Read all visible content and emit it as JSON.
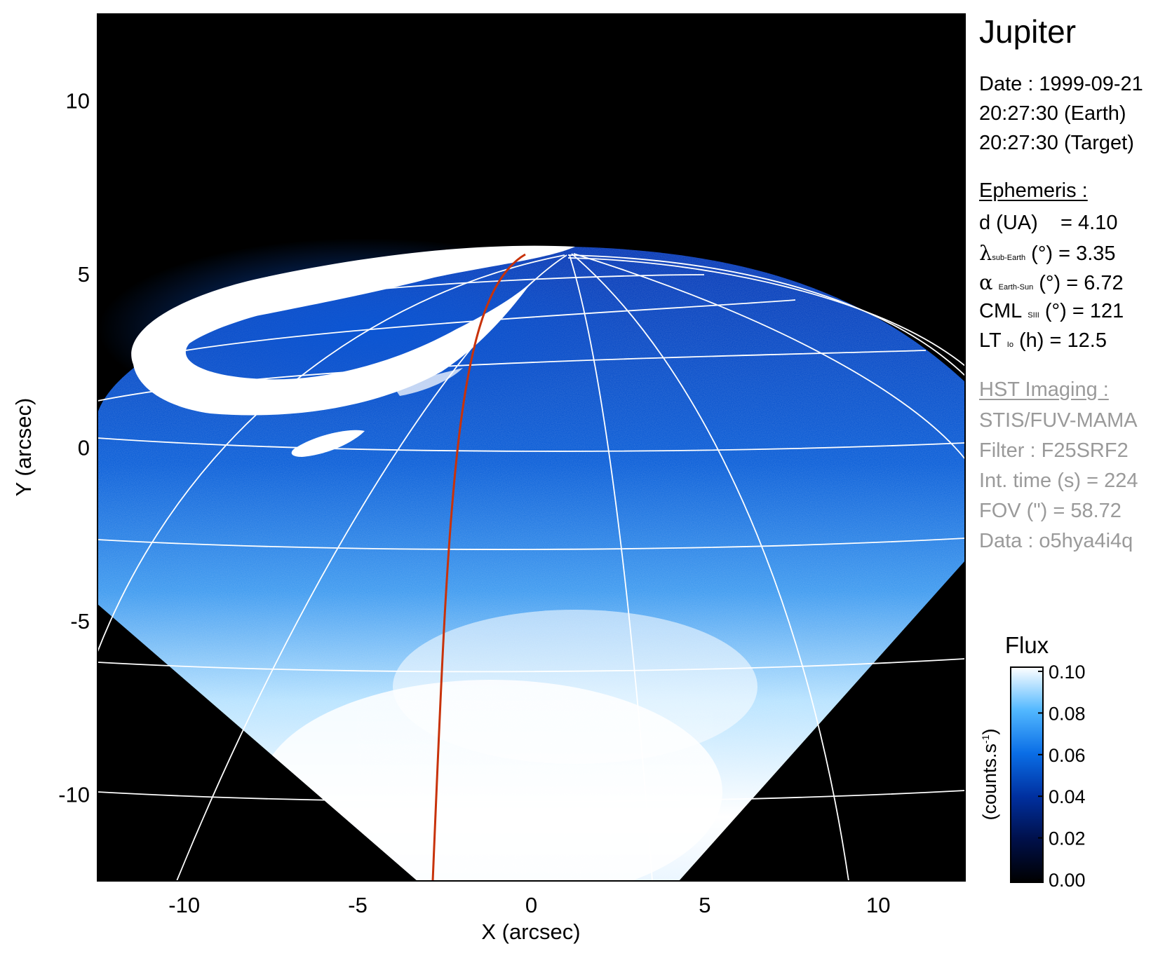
{
  "plot": {
    "title": "Jupiter",
    "xlabel": "X (arcsec)",
    "ylabel": "Y (arcsec)",
    "xlim": [
      -12.5,
      12.5
    ],
    "ylim": [
      -12.5,
      12.5
    ],
    "xticks": [
      -10,
      -5,
      0,
      5,
      10
    ],
    "yticks": [
      -10,
      -5,
      0,
      5,
      10
    ],
    "image_colormap": [
      "#000000",
      "#001a6e",
      "#0037c8",
      "#1e90ff",
      "#8fd6ff",
      "#ffffff"
    ],
    "grid_color": "#ffffff",
    "trace_color": "#c8320a"
  },
  "info": {
    "date_line": "Date : 1999-09-21",
    "earth_line": "20:27:30 (Earth)",
    "target_line": "20:27:30 (Target)",
    "ephemeris_header": "Ephemeris :",
    "d_label": "d (UA)",
    "d_value": "= 4.10",
    "lat_symbol": "λ",
    "lat_sub": "sub-Earth",
    "lat_unit_value": "(°) = 3.35",
    "phase_symbol": "α",
    "phase_sub": "Earth-Sun",
    "phase_unit_value": "(°) = 6.72",
    "cml_label": "CML",
    "cml_sub": "SIII",
    "cml_unit_value": "(°) = 121",
    "lt_label": "LT",
    "lt_sub": "Io",
    "lt_unit_value": "(h) = 12.5",
    "hst_header": "HST Imaging :",
    "instrument": "STIS/FUV-MAMA",
    "filter": "Filter : F25SRF2",
    "int_time": "Int. time (s) = 224",
    "fov": "FOV (\") = 58.72",
    "data_id": "Data : o5hya4i4q"
  },
  "colorbar": {
    "title": "Flux",
    "unit_label": "(counts.s",
    "unit_sup": "-1",
    "unit_close": ")",
    "ticks": [
      "0.00",
      "0.02",
      "0.04",
      "0.06",
      "0.08",
      "0.10"
    ],
    "gradient": [
      "#000000",
      "#00104a",
      "#0030a0",
      "#0a6ee6",
      "#52b8ff",
      "#ffffff"
    ]
  }
}
